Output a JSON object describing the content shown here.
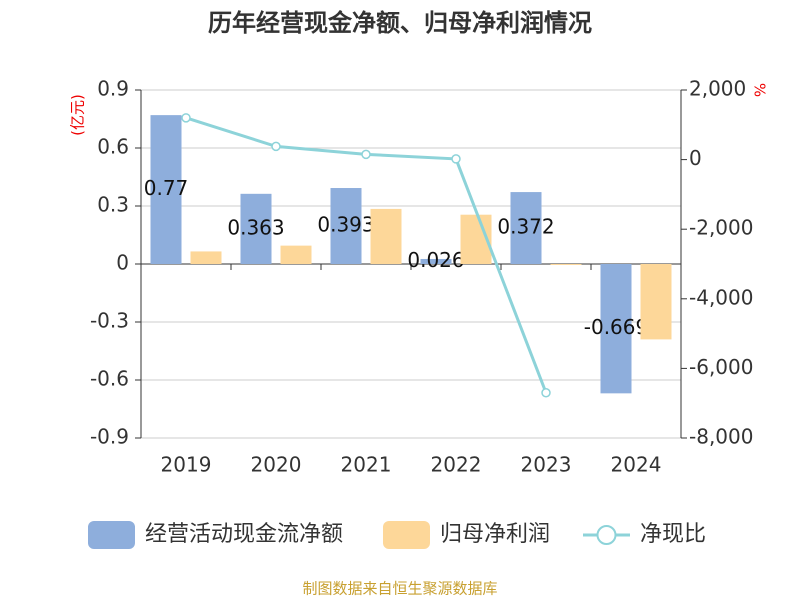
{
  "chart_data": {
    "type": "bar_line",
    "title": "历年经营现金净额、归母净利润情况",
    "y_label": "(亿元)",
    "y2_label": "%",
    "source": "制图数据来自恒生聚源数据库",
    "categories": [
      "2019",
      "2020",
      "2021",
      "2022",
      "2023",
      "2024"
    ],
    "series": [
      {
        "name": "经营活动现金流净额",
        "type": "bar",
        "color": "#8eaedc",
        "values": [
          0.77,
          0.363,
          0.393,
          0.026,
          0.372,
          -0.669
        ]
      },
      {
        "name": "归母净利润",
        "type": "bar",
        "color": "#fdd799",
        "values": [
          0.065,
          0.095,
          0.285,
          0.255,
          -0.005,
          -0.39
        ]
      },
      {
        "name": "净现比",
        "type": "line",
        "axis": "y2",
        "color": "#8dd3d9",
        "values": [
          1200,
          380,
          150,
          20,
          -6700,
          null
        ]
      }
    ],
    "ylim": [
      -0.9,
      0.9
    ],
    "yticks": [
      -0.9,
      -0.6,
      -0.3,
      0,
      0.3,
      0.6,
      0.9
    ],
    "y2lim": [
      -8000,
      2000
    ],
    "y2ticks": [
      {
        "value": -8000,
        "label": "-8,000"
      },
      {
        "value": -6000,
        "label": "-6,000"
      },
      {
        "value": -4000,
        "label": "-4,000"
      },
      {
        "value": -2000,
        "label": "-2,000"
      },
      0,
      {
        "value": 2000,
        "label": "2,000"
      }
    ],
    "grid": true
  }
}
